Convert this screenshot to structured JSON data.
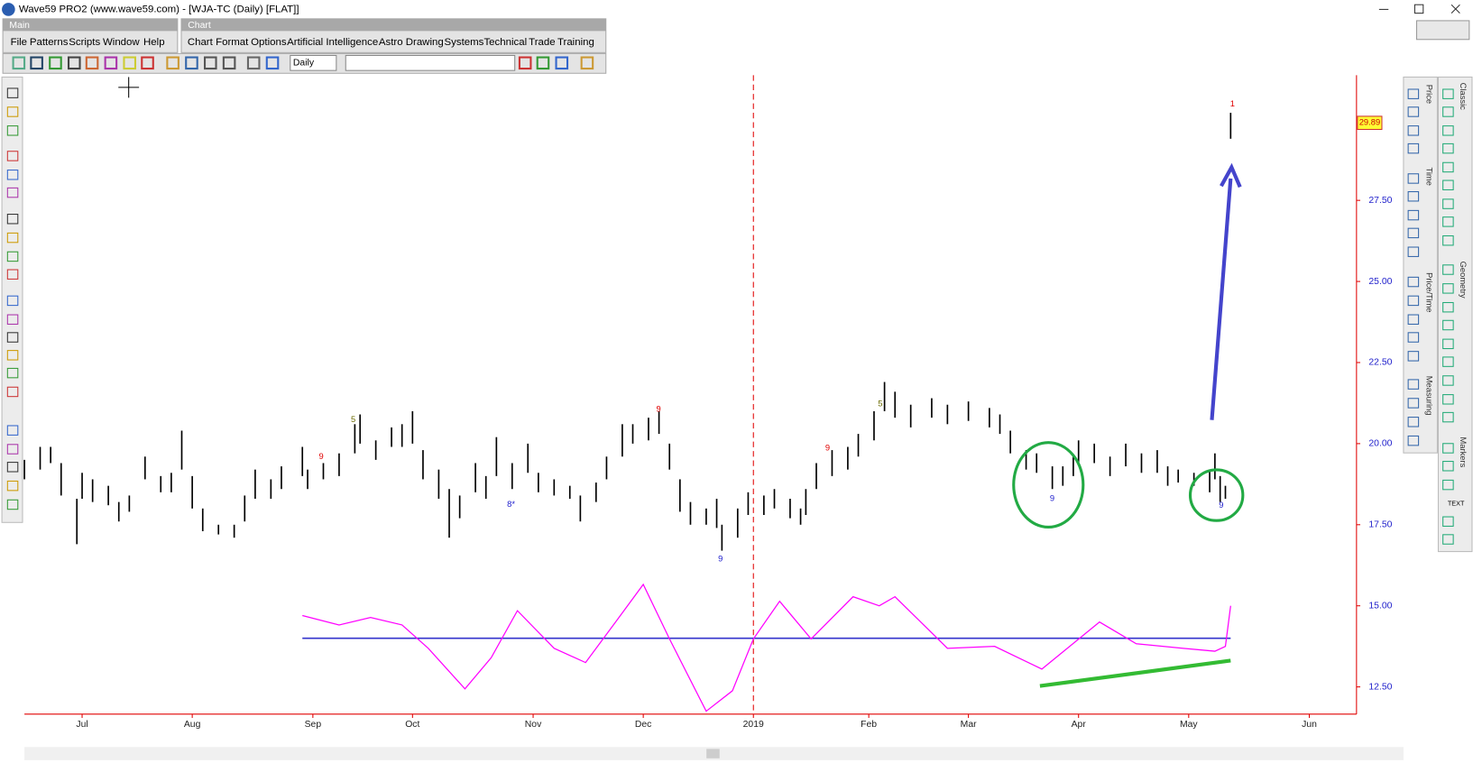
{
  "window": {
    "title": "Wave59 PRO2 (www.wave59.com) - [WJA-TC (Daily) [FLAT]]"
  },
  "menus": {
    "main_label": "Main",
    "main": [
      "File",
      "Patterns",
      "Scripts",
      "Window",
      "Help"
    ],
    "chart_label": "Chart",
    "chart": [
      "Chart",
      "Format",
      "Options",
      "Artificial Intelligence",
      "Astro",
      "Drawing",
      "Systems",
      "Technical",
      "Trade",
      "Training"
    ]
  },
  "toolbar": {
    "period": "Daily"
  },
  "side_tabs": [
    "Classic",
    "Price",
    "Time",
    "Price/Time",
    "Geometry",
    "Measuring",
    "Markers"
  ],
  "markers_text": "TEXT",
  "chart_data": {
    "type": "range-bar",
    "color": "#000000",
    "x": [
      0,
      3,
      5,
      7,
      10,
      11,
      13,
      16,
      18,
      20,
      23,
      26,
      28,
      30,
      32,
      34,
      37,
      40,
      42,
      44,
      47,
      49,
      53,
      54,
      57,
      60,
      63,
      64,
      67,
      70,
      72,
      74,
      76,
      79,
      81,
      83,
      86,
      88,
      90,
      93,
      96,
      98,
      101,
      104,
      106,
      109,
      111,
      114,
      116,
      119,
      121,
      123,
      125,
      127,
      130,
      132,
      133,
      136,
      138,
      141,
      143,
      146,
      148,
      149,
      151,
      154,
      157,
      159,
      162,
      164,
      166,
      169,
      173,
      176,
      180,
      184,
      186,
      188,
      191,
      193,
      196,
      198,
      200,
      201,
      204,
      207,
      210,
      213,
      216,
      218,
      220,
      223,
      226,
      227,
      228,
      229,
      230
    ],
    "high": [
      19.5,
      19.9,
      19.9,
      19.4,
      18.3,
      19.1,
      18.9,
      18.7,
      18.2,
      18.4,
      19.6,
      19.0,
      19.1,
      20.4,
      19.0,
      18.0,
      17.5,
      17.5,
      18.4,
      19.2,
      18.9,
      19.3,
      19.9,
      19.2,
      19.4,
      19.7,
      20.6,
      20.9,
      20.1,
      20.5,
      20.6,
      21.0,
      19.8,
      19.2,
      18.6,
      18.4,
      19.4,
      19.0,
      20.2,
      19.4,
      20.0,
      19.1,
      18.9,
      18.7,
      18.4,
      18.8,
      19.6,
      20.6,
      20.6,
      20.8,
      21.0,
      20.0,
      18.9,
      18.2,
      18.0,
      18.3,
      17.5,
      18.0,
      18.5,
      18.4,
      18.6,
      18.3,
      18.0,
      18.6,
      19.4,
      19.8,
      19.9,
      20.3,
      21.0,
      21.9,
      21.6,
      21.2,
      21.4,
      21.2,
      21.3,
      21.1,
      20.9,
      20.4,
      19.8,
      19.7,
      19.3,
      19.3,
      19.6,
      20.1,
      20.0,
      19.6,
      20.0,
      19.7,
      19.8,
      19.3,
      19.2,
      19.1,
      19.2,
      19.7,
      19.0,
      18.7,
      30.2
    ],
    "low": [
      18.9,
      19.2,
      19.4,
      18.4,
      16.9,
      18.3,
      18.2,
      18.1,
      17.6,
      17.9,
      18.9,
      18.5,
      18.5,
      19.2,
      18.0,
      17.3,
      17.2,
      17.1,
      17.6,
      18.3,
      18.3,
      18.6,
      19.0,
      18.6,
      18.9,
      19.0,
      19.7,
      20.0,
      19.5,
      19.9,
      19.9,
      20.0,
      18.9,
      18.3,
      17.1,
      17.7,
      18.5,
      18.3,
      19.0,
      18.6,
      19.1,
      18.5,
      18.4,
      18.3,
      17.6,
      18.2,
      18.9,
      19.6,
      20.0,
      20.1,
      20.3,
      19.2,
      17.9,
      17.5,
      17.5,
      17.4,
      16.7,
      17.1,
      17.8,
      17.8,
      18.0,
      17.7,
      17.5,
      17.8,
      18.6,
      19.0,
      19.2,
      19.6,
      20.1,
      21.0,
      20.8,
      20.5,
      20.8,
      20.6,
      20.7,
      20.5,
      20.3,
      19.7,
      19.2,
      19.1,
      18.6,
      18.7,
      19.0,
      19.4,
      19.4,
      19.0,
      19.3,
      19.1,
      19.1,
      18.7,
      18.8,
      18.7,
      18.5,
      18.9,
      18.2,
      18.3,
      29.4
    ],
    "last_price": 29.89,
    "indicator": {
      "color": "#ff00ff",
      "x": [
        53,
        60,
        66,
        72,
        77,
        84,
        89,
        94,
        101,
        107,
        113,
        118,
        123,
        130,
        135,
        139,
        144,
        150,
        158,
        163,
        166,
        176,
        185,
        194,
        205,
        212,
        221,
        227,
        229,
        230
      ],
      "values": [
        14.7,
        14.41,
        14.64,
        14.41,
        13.69,
        12.44,
        13.4,
        14.85,
        13.69,
        13.25,
        14.56,
        15.66,
        13.98,
        11.75,
        12.38,
        13.98,
        15.14,
        13.98,
        15.28,
        15.0,
        15.28,
        13.69,
        13.75,
        13.05,
        14.5,
        13.83,
        13.69,
        13.6,
        13.75,
        15.0
      ]
    },
    "level": {
      "value": 14.0,
      "color": "#3333cc"
    },
    "xlim": [
      0,
      254
    ],
    "ylim": [
      11.66,
      31.36
    ],
    "xticks": [
      {
        "value": 11,
        "label": "Jul"
      },
      {
        "value": 32,
        "label": "Aug"
      },
      {
        "value": 55,
        "label": "Sep"
      },
      {
        "value": 74,
        "label": "Oct"
      },
      {
        "value": 97,
        "label": "Nov"
      },
      {
        "value": 118,
        "label": "Dec"
      },
      {
        "value": 139,
        "label": "2019"
      },
      {
        "value": 161,
        "label": "Feb"
      },
      {
        "value": 180,
        "label": "Mar"
      },
      {
        "value": 201,
        "label": "Apr"
      },
      {
        "value": 222,
        "label": "May"
      },
      {
        "value": 245,
        "label": "Jun"
      }
    ],
    "yticks": [
      {
        "value": 12.5,
        "label": "12.50"
      },
      {
        "value": 15,
        "label": "15.00"
      },
      {
        "value": 17.5,
        "label": "17.50"
      },
      {
        "value": 20,
        "label": "20.00"
      },
      {
        "value": 22.5,
        "label": "22.50"
      },
      {
        "value": 25,
        "label": "25.00"
      },
      {
        "value": 27.5,
        "label": "27.50"
      }
    ],
    "annotations": [
      {
        "text": "9",
        "color": "#e00000"
      },
      {
        "text": "5",
        "color": "#6b6b00"
      },
      {
        "text": "8*",
        "color": "#1a1acc"
      },
      {
        "text": "9",
        "color": "#e00000"
      },
      {
        "text": "9",
        "color": "#1a1acc"
      },
      {
        "text": "9",
        "color": "#e00000"
      },
      {
        "text": "5",
        "color": "#6b6b00"
      },
      {
        "text": "9",
        "color": "#1a1acc"
      },
      {
        "text": "9",
        "color": "#1a1acc"
      },
      {
        "text": "1",
        "color": "#e00000"
      }
    ]
  }
}
